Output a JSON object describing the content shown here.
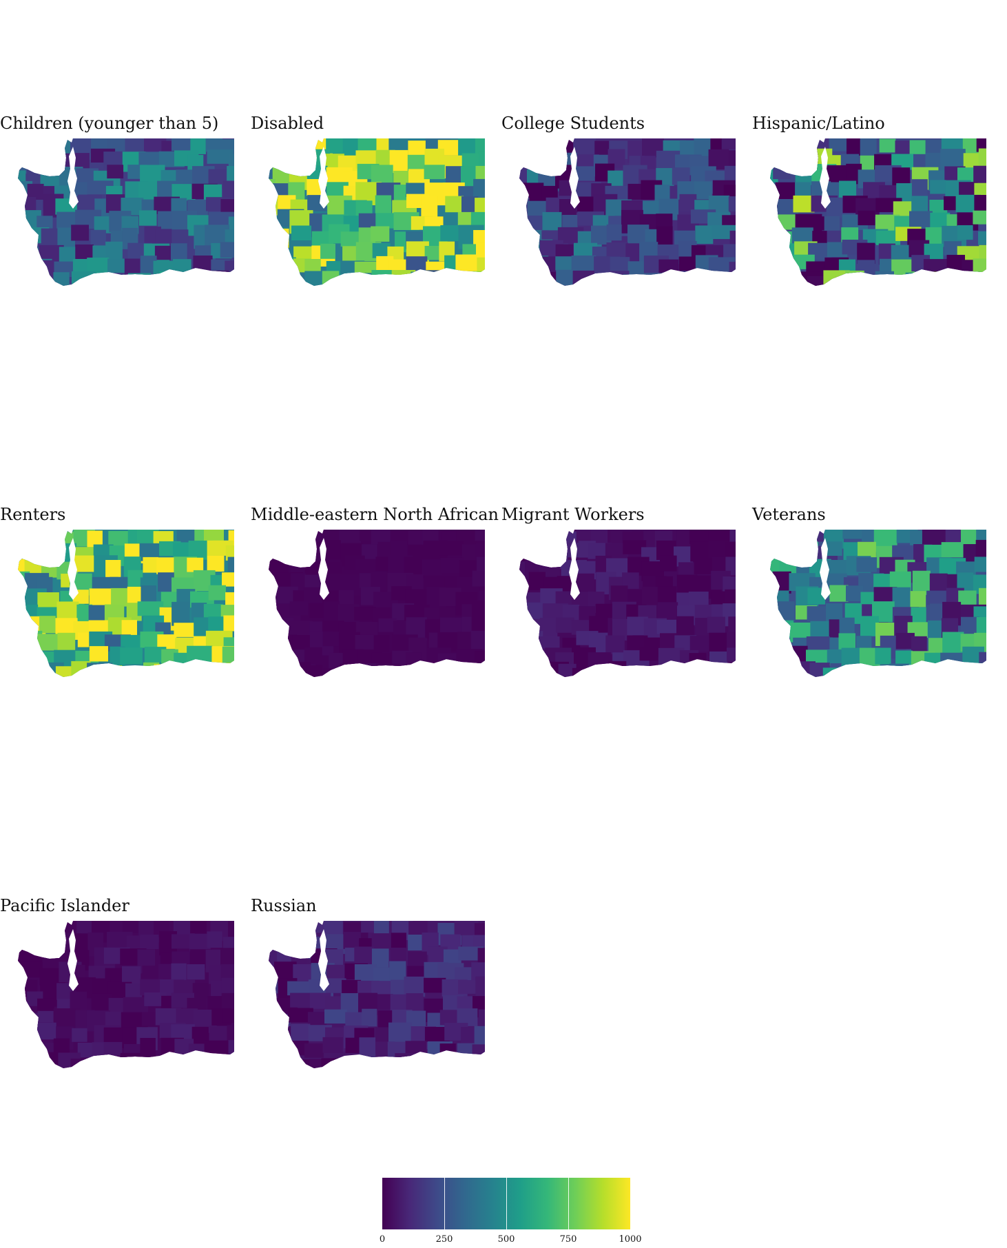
{
  "chart_data": {
    "type": "choropleth",
    "region": "Washington State",
    "scale": {
      "colormap": "viridis",
      "min": 0,
      "max": 1000,
      "ticks": [
        0,
        250,
        500,
        750,
        1000
      ]
    },
    "legend_placement": "bottom",
    "panels": [
      {
        "title": "Children (younger than 5)",
        "level": 0.3,
        "spread": 0.25
      },
      {
        "title": "Disabled",
        "level": 0.7,
        "spread": 0.45
      },
      {
        "title": "College Students",
        "level": 0.2,
        "spread": 0.25
      },
      {
        "title": "Hispanic/Latino",
        "level": 0.35,
        "spread": 0.55
      },
      {
        "title": "Renters",
        "level": 0.75,
        "spread": 0.45
      },
      {
        "title": "Middle-eastern North African",
        "level": 0.01,
        "spread": 0.02
      },
      {
        "title": "Migrant Workers",
        "level": 0.04,
        "spread": 0.08
      },
      {
        "title": "Veterans",
        "level": 0.4,
        "spread": 0.4
      },
      {
        "title": "Pacific Islander",
        "level": 0.03,
        "spread": 0.06
      },
      {
        "title": "Russian",
        "level": 0.1,
        "spread": 0.12
      }
    ]
  }
}
